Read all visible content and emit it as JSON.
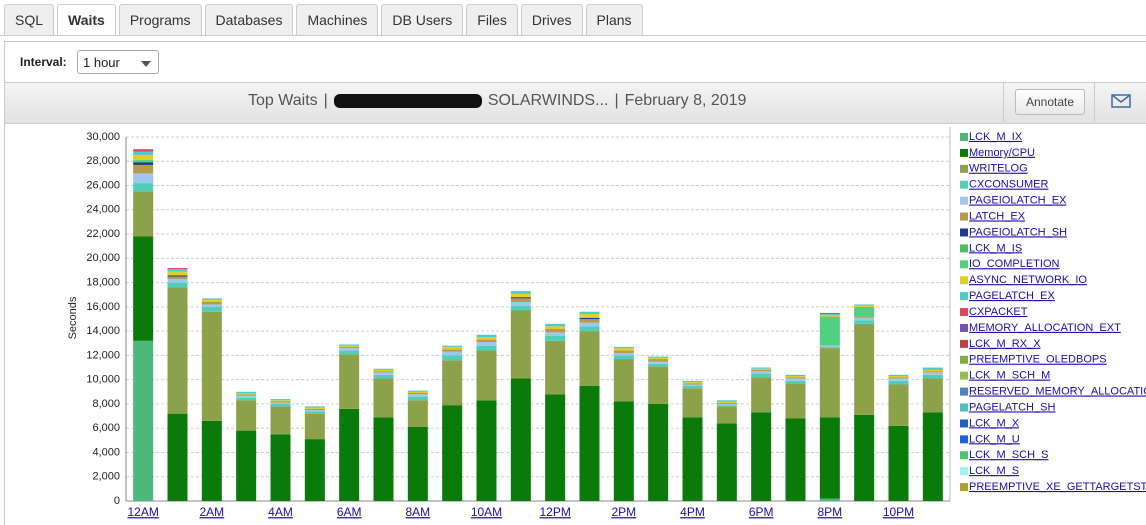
{
  "tabs": [
    "SQL",
    "Waits",
    "Programs",
    "Databases",
    "Machines",
    "DB Users",
    "Files",
    "Drives",
    "Plans"
  ],
  "interval": {
    "label": "Interval:",
    "value": "1 hour"
  },
  "header": {
    "title": "Top Waits",
    "separator": "|",
    "server": "SOLARWINDS...",
    "date": "February 8, 2019",
    "annotate": "Annotate"
  },
  "chart_data": {
    "type": "stacked-bar",
    "y_label": "Seconds",
    "grid": true,
    "categories": [
      "12AM",
      null,
      "2AM",
      null,
      "4AM",
      null,
      "6AM",
      null,
      "8AM",
      null,
      "10AM",
      null,
      "12PM",
      null,
      "2PM",
      null,
      "4PM",
      null,
      "6PM",
      null,
      "8PM",
      null,
      "10PM",
      null
    ],
    "ylim": [
      0,
      30000
    ],
    "yticks": [
      0,
      {
        "value": 2000,
        "label": "2,000"
      },
      {
        "value": 4000,
        "label": "4,000"
      },
      {
        "value": 6000,
        "label": "6,000"
      },
      {
        "value": 8000,
        "label": "8,000"
      },
      {
        "value": 10000,
        "label": "10,000"
      },
      {
        "value": 12000,
        "label": "12,000"
      },
      {
        "value": 14000,
        "label": "14,000"
      },
      {
        "value": 16000,
        "label": "16,000"
      },
      {
        "value": 18000,
        "label": "18,000"
      },
      {
        "value": 20000,
        "label": "20,000"
      },
      {
        "value": 22000,
        "label": "22,000"
      },
      {
        "value": 24000,
        "label": "24,000"
      },
      {
        "value": 26000,
        "label": "26,000"
      },
      {
        "value": 28000,
        "label": "28,000"
      },
      {
        "value": 30000,
        "label": "30,000"
      }
    ],
    "series": [
      {
        "name": "LCK_M_IX",
        "color": "#4cb87a",
        "values": [
          13200,
          0,
          0,
          0,
          0,
          0,
          0,
          0,
          0,
          0,
          0,
          0,
          0,
          0,
          0,
          0,
          0,
          0,
          0,
          0,
          200,
          0,
          0,
          0
        ]
      },
      {
        "name": "Memory/CPU",
        "color": "#0a7a0a",
        "values": [
          8600,
          7200,
          6600,
          5800,
          5500,
          5100,
          7600,
          6900,
          6100,
          7900,
          8300,
          10100,
          8800,
          9500,
          8200,
          8000,
          6900,
          6400,
          7300,
          6800,
          6700,
          7100,
          6200,
          7300
        ]
      },
      {
        "name": "WRITELOG",
        "color": "#8ca24a",
        "values": [
          3700,
          10400,
          9000,
          2500,
          2300,
          2100,
          4500,
          3200,
          2200,
          3700,
          4100,
          5600,
          4400,
          4500,
          3500,
          3100,
          2400,
          1400,
          2900,
          2900,
          5700,
          7500,
          3400,
          2800
        ]
      },
      {
        "name": "CXCONSUMER",
        "color": "#4fcfb8",
        "values": [
          700,
          400,
          400,
          200,
          200,
          200,
          300,
          300,
          300,
          400,
          400,
          400,
          400,
          400,
          300,
          200,
          200,
          100,
          300,
          200,
          100,
          300,
          300,
          300
        ]
      },
      {
        "name": "PAGEIOLATCH_EX",
        "color": "#9cc8f0",
        "values": [
          800,
          300,
          200,
          200,
          100,
          100,
          200,
          200,
          200,
          300,
          300,
          300,
          300,
          300,
          200,
          200,
          100,
          100,
          200,
          200,
          100,
          200,
          200,
          200
        ]
      },
      {
        "name": "LATCH_EX",
        "color": "#b89a4a",
        "values": [
          700,
          200,
          200,
          100,
          100,
          100,
          100,
          100,
          100,
          200,
          200,
          300,
          300,
          300,
          200,
          200,
          100,
          100,
          100,
          100,
          0,
          100,
          100,
          100
        ]
      },
      {
        "name": "PAGEIOLATCH_SH",
        "color": "#1a3a9a",
        "values": [
          200,
          100,
          0,
          0,
          0,
          0,
          0,
          0,
          0,
          0,
          0,
          100,
          0,
          100,
          0,
          0,
          0,
          0,
          0,
          0,
          0,
          0,
          0,
          0
        ]
      },
      {
        "name": "LCK_M_IS",
        "color": "#4cc060",
        "values": [
          100,
          0,
          0,
          0,
          0,
          0,
          0,
          0,
          0,
          0,
          0,
          0,
          0,
          0,
          0,
          0,
          0,
          0,
          0,
          0,
          0,
          0,
          0,
          0
        ]
      },
      {
        "name": "IO_COMPLETION",
        "color": "#50d080",
        "values": [
          100,
          0,
          0,
          0,
          0,
          0,
          0,
          0,
          0,
          0,
          0,
          0,
          0,
          0,
          0,
          0,
          0,
          0,
          0,
          0,
          2400,
          800,
          0,
          0
        ]
      },
      {
        "name": "ASYNC_NETWORK_IO",
        "color": "#e0d020",
        "values": [
          400,
          300,
          200,
          100,
          100,
          100,
          100,
          100,
          100,
          200,
          200,
          300,
          200,
          300,
          200,
          100,
          100,
          100,
          100,
          100,
          100,
          100,
          100,
          100
        ]
      },
      {
        "name": "PAGELATCH_EX",
        "color": "#50c8d0",
        "values": [
          300,
          200,
          100,
          100,
          100,
          100,
          100,
          100,
          100,
          100,
          200,
          200,
          200,
          200,
          100,
          100,
          100,
          100,
          100,
          100,
          100,
          100,
          100,
          200
        ]
      },
      {
        "name": "CXPACKET",
        "color": "#e04860",
        "values": [
          200,
          100,
          0,
          0,
          0,
          0,
          0,
          0,
          0,
          0,
          0,
          0,
          0,
          0,
          0,
          0,
          0,
          0,
          0,
          0,
          100,
          0,
          0,
          0
        ]
      },
      {
        "name": "MEMORY_ALLOCATION_EXT",
        "color": "#7050c0",
        "values": [
          0,
          0,
          0,
          0,
          0,
          0,
          0,
          0,
          0,
          0,
          0,
          0,
          0,
          0,
          0,
          0,
          0,
          0,
          0,
          0,
          0,
          0,
          0,
          0
        ]
      },
      {
        "name": "LCK_M_RX_X",
        "color": "#c04040",
        "values": [
          0,
          0,
          0,
          0,
          0,
          0,
          0,
          0,
          0,
          0,
          0,
          0,
          0,
          0,
          0,
          0,
          0,
          0,
          0,
          0,
          0,
          0,
          0,
          0
        ]
      },
      {
        "name": "PREEMPTIVE_OLEDBOPS",
        "color": "#80b040",
        "values": [
          0,
          0,
          0,
          0,
          0,
          0,
          0,
          0,
          0,
          0,
          0,
          0,
          0,
          0,
          0,
          0,
          0,
          0,
          0,
          0,
          0,
          0,
          0,
          0
        ]
      },
      {
        "name": "LCK_M_SCH_M",
        "color": "#90c050",
        "values": [
          0,
          0,
          0,
          0,
          0,
          0,
          0,
          0,
          0,
          0,
          0,
          0,
          0,
          0,
          0,
          0,
          0,
          0,
          0,
          0,
          0,
          0,
          0,
          0
        ]
      },
      {
        "name": "RESERVED_MEMORY_ALLOCATION_EXT",
        "color": "#5080c0",
        "values": [
          0,
          0,
          0,
          0,
          0,
          0,
          0,
          0,
          0,
          0,
          0,
          0,
          0,
          0,
          0,
          0,
          0,
          0,
          0,
          0,
          0,
          0,
          0,
          0
        ]
      },
      {
        "name": "PAGELATCH_SH",
        "color": "#50c0c0",
        "values": [
          0,
          0,
          0,
          0,
          0,
          0,
          0,
          0,
          0,
          0,
          0,
          0,
          0,
          0,
          0,
          0,
          0,
          0,
          0,
          0,
          0,
          0,
          0,
          0
        ]
      },
      {
        "name": "LCK_M_X",
        "color": "#2060c0",
        "values": [
          0,
          0,
          0,
          0,
          0,
          0,
          0,
          0,
          0,
          0,
          0,
          0,
          0,
          0,
          0,
          0,
          0,
          0,
          0,
          0,
          0,
          0,
          0,
          0
        ]
      },
      {
        "name": "LCK_M_U",
        "color": "#2060e0",
        "values": [
          0,
          0,
          0,
          0,
          0,
          0,
          0,
          0,
          0,
          0,
          0,
          0,
          0,
          0,
          0,
          0,
          0,
          0,
          0,
          0,
          0,
          0,
          0,
          0
        ]
      },
      {
        "name": "LCK_M_SCH_S",
        "color": "#50c070",
        "values": [
          0,
          0,
          0,
          0,
          0,
          0,
          0,
          0,
          0,
          0,
          0,
          0,
          0,
          0,
          0,
          0,
          0,
          0,
          0,
          0,
          0,
          0,
          0,
          0
        ]
      },
      {
        "name": "LCK_M_S",
        "color": "#a0f0f0",
        "values": [
          0,
          0,
          0,
          0,
          0,
          0,
          0,
          0,
          0,
          0,
          0,
          0,
          0,
          0,
          0,
          0,
          0,
          0,
          0,
          0,
          0,
          0,
          0,
          0
        ]
      },
      {
        "name": "PREEMPTIVE_XE_GETTARGETSTATE",
        "color": "#b0a030",
        "values": [
          0,
          0,
          0,
          0,
          0,
          0,
          0,
          0,
          0,
          0,
          0,
          0,
          0,
          0,
          0,
          0,
          0,
          0,
          0,
          0,
          0,
          0,
          0,
          0
        ]
      }
    ]
  }
}
